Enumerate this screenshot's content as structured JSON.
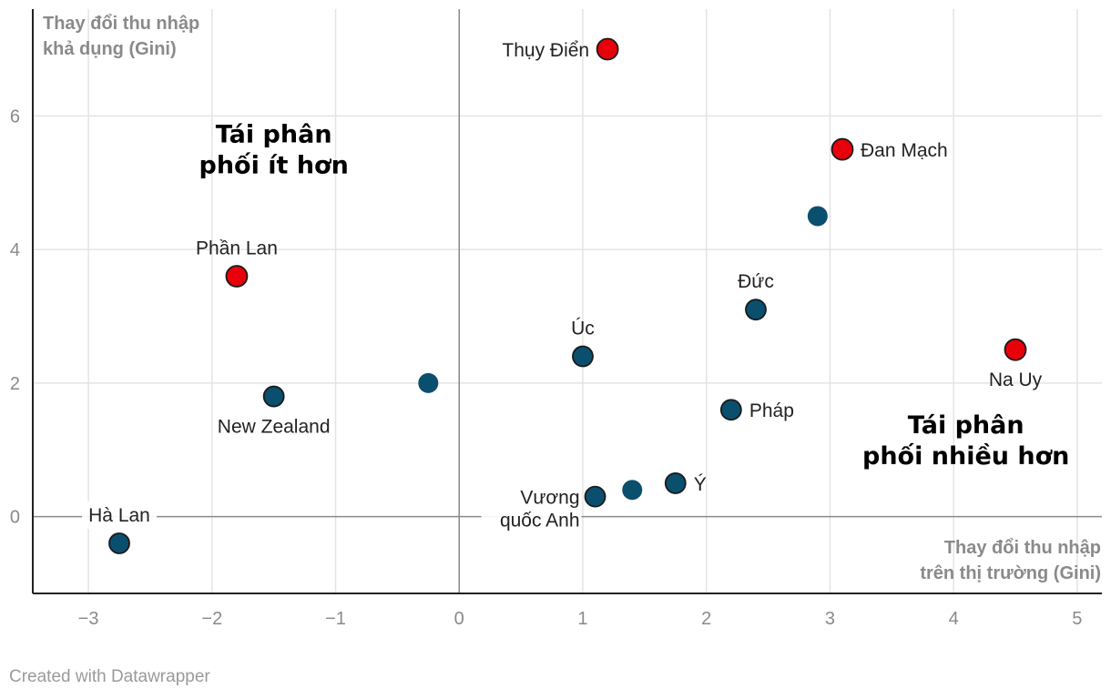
{
  "chart_data": {
    "type": "scatter",
    "xlabel": [
      "Thay đổi thu nhập",
      "trên thị trường (Gini)"
    ],
    "ylabel": [
      "Thay đổi thu nhập",
      "khả dụng (Gini)"
    ],
    "xlim": [
      -3.45,
      5.2
    ],
    "ylim": [
      -1.15,
      7.6
    ],
    "xticks": [
      -3,
      -2,
      -1,
      0,
      1,
      2,
      3,
      4,
      5
    ],
    "yticks": [
      0,
      2,
      4,
      6
    ],
    "xtick_labels": [
      "−3",
      "−2",
      "−1",
      "0",
      "1",
      "2",
      "3",
      "4",
      "5"
    ],
    "ytick_labels": [
      "0",
      "2",
      "4",
      "6"
    ],
    "grid": true,
    "colors": {
      "nordic": "#e8000b",
      "other": "#0a4f6e",
      "grid": "#e4e4e4",
      "axis": "#8a8a8a"
    },
    "annotations": [
      {
        "text": [
          "Tái phân",
          "phối ít hơn"
        ],
        "x": -1.5,
        "y": 5.6
      },
      {
        "text": [
          "Tái phân",
          "phối nhiều hơn"
        ],
        "x": 4.1,
        "y": 1.25
      }
    ],
    "points": [
      {
        "label": [
          "Thụy Điển"
        ],
        "x": 1.2,
        "y": 7.0,
        "group": "nordic",
        "label_pos": "left"
      },
      {
        "label": [
          "Đan Mạch"
        ],
        "x": 3.1,
        "y": 5.5,
        "group": "nordic",
        "label_pos": "right"
      },
      {
        "label": [],
        "x": 2.9,
        "y": 4.5,
        "group": "other",
        "label_pos": "none"
      },
      {
        "label": [
          "Phần Lan"
        ],
        "x": -1.8,
        "y": 3.6,
        "group": "nordic",
        "label_pos": "top"
      },
      {
        "label": [
          "Đức"
        ],
        "x": 2.4,
        "y": 3.1,
        "group": "other",
        "label_pos": "top"
      },
      {
        "label": [
          "Na Uy"
        ],
        "x": 4.5,
        "y": 2.5,
        "group": "nordic",
        "label_pos": "bottom"
      },
      {
        "label": [
          "Úc"
        ],
        "x": 1.0,
        "y": 2.4,
        "group": "other",
        "label_pos": "top"
      },
      {
        "label": [],
        "x": -0.25,
        "y": 2.0,
        "group": "other",
        "label_pos": "none"
      },
      {
        "label": [
          "New Zealand"
        ],
        "x": -1.5,
        "y": 1.8,
        "group": "other",
        "label_pos": "bottom"
      },
      {
        "label": [
          "Pháp"
        ],
        "x": 2.2,
        "y": 1.6,
        "group": "other",
        "label_pos": "right"
      },
      {
        "label": [
          "Ý"
        ],
        "x": 1.75,
        "y": 0.5,
        "group": "other",
        "label_pos": "right"
      },
      {
        "label": [],
        "x": 1.4,
        "y": 0.4,
        "group": "other",
        "label_pos": "none"
      },
      {
        "label": [
          "Vương",
          "quốc Anh"
        ],
        "x": 1.1,
        "y": 0.3,
        "group": "other",
        "label_pos": "left-low"
      },
      {
        "label": [
          "Hà Lan"
        ],
        "x": -2.75,
        "y": -0.4,
        "group": "other",
        "label_pos": "top"
      }
    ]
  },
  "footer": {
    "credit": "Created with Datawrapper"
  }
}
